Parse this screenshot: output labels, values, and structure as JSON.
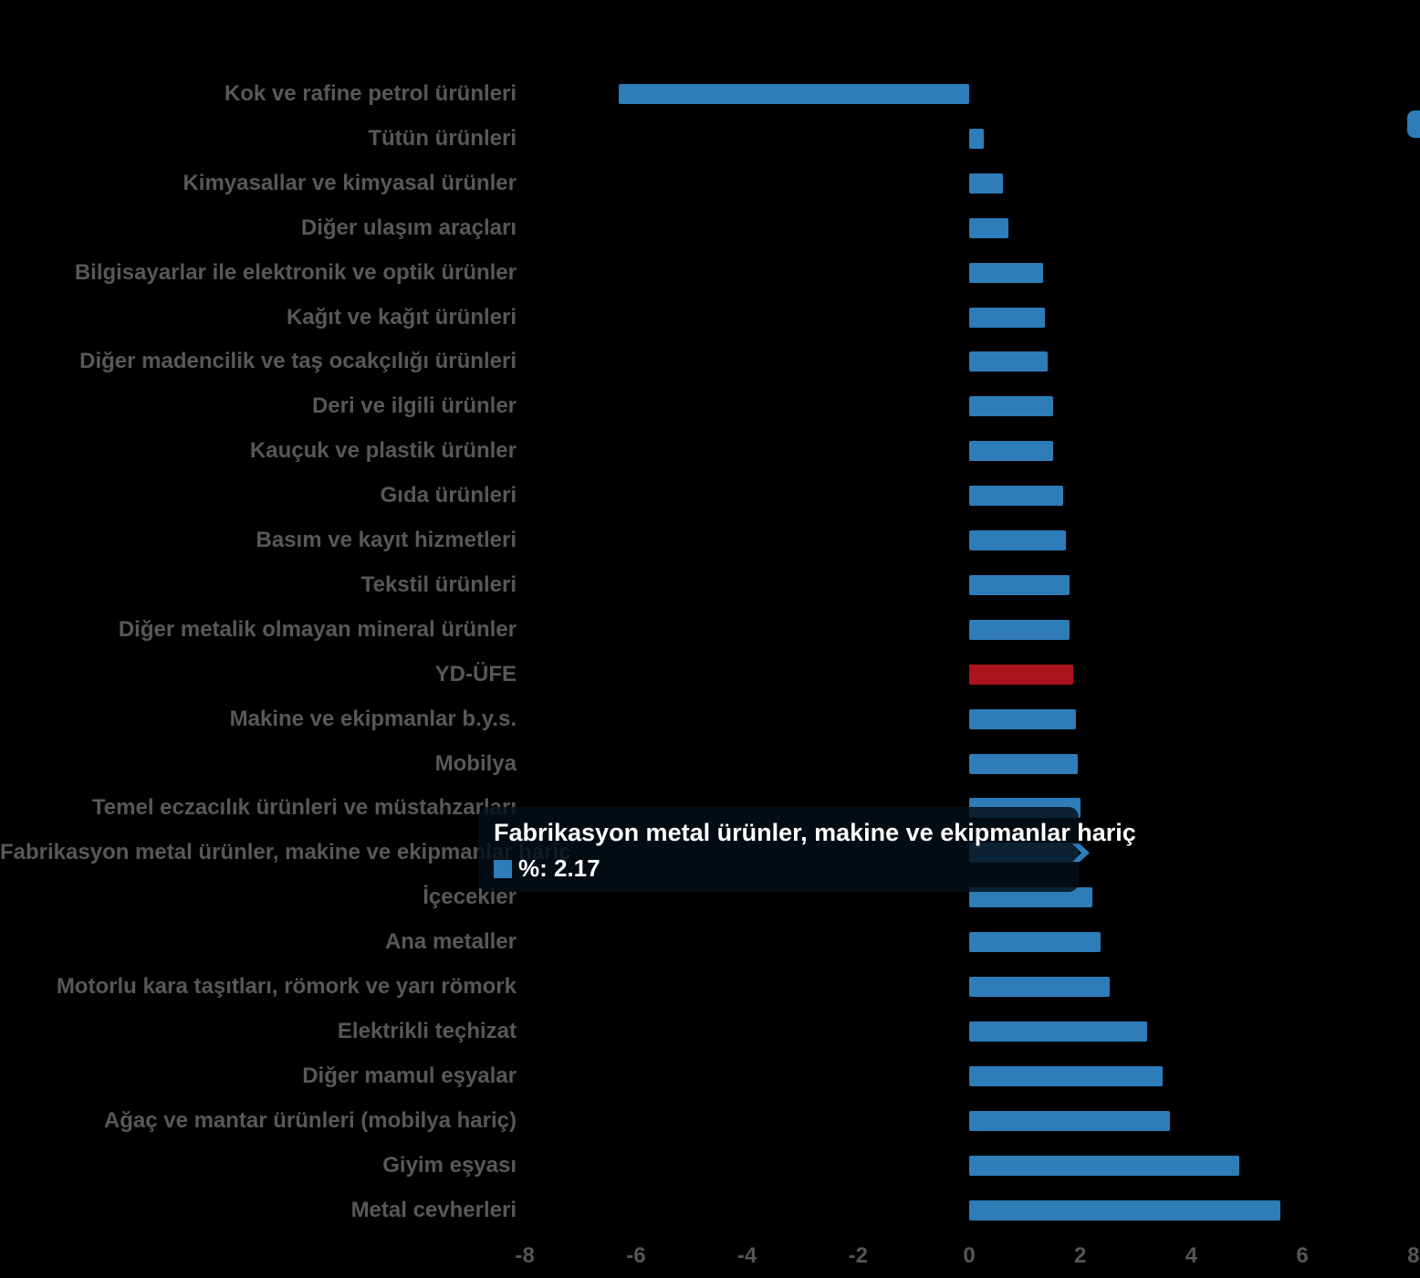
{
  "chart_data": {
    "type": "bar",
    "orientation": "horizontal",
    "title": "",
    "xlabel": "",
    "ylabel": "",
    "xlim": [
      -8,
      8
    ],
    "x_ticks": [
      "-8",
      "-6",
      "-4",
      "-2",
      "0",
      "2",
      "4",
      "6",
      "8"
    ],
    "grid": false,
    "legend": "none",
    "bar_color": "#2e7cb8",
    "highlight_bar_color": "#ab141e",
    "highlighted_category": "YD-ÜFE",
    "hovered_category": "Fabrikasyon metal ürünler, makine ve ekipmanlar hariç",
    "categories": [
      "Kok ve rafine petrol ürünleri",
      "Tütün ürünleri",
      "Kimyasallar ve kimyasal ürünler",
      "Diğer ulaşım araçları",
      "Bilgisayarlar ile elektronik ve optik ürünler",
      "Kağıt ve kağıt ürünleri",
      "Diğer madencilik ve taş ocakçılığı ürünleri",
      "Deri ve ilgili ürünler",
      "Kauçuk ve plastik ürünler",
      "Gıda ürünleri",
      "Basım ve kayıt hizmetleri",
      "Tekstil ürünleri",
      "Diğer metalik olmayan mineral ürünler",
      "YD-ÜFE",
      "Makine ve ekipmanlar b.y.s.",
      "Mobilya",
      "Temel eczacılık ürünleri ve müstahzarları",
      "Fabrikasyon metal ürünler, makine ve ekipmanlar hariç",
      "İçecekler",
      "Ana metaller",
      "Motorlu kara taşıtları, römork ve yarı römork",
      "Elektrikli teçhizat",
      "Diğer mamul eşyalar",
      "Ağaç ve mantar ürünleri (mobilya hariç)",
      "Giyim eşyası",
      "Metal cevherleri"
    ],
    "values": [
      -6.31,
      0.26,
      0.61,
      0.71,
      1.33,
      1.36,
      1.41,
      1.51,
      1.52,
      1.69,
      1.75,
      1.8,
      1.8,
      1.88,
      1.93,
      1.96,
      2.01,
      2.17,
      2.22,
      2.36,
      2.53,
      3.2,
      3.48,
      3.62,
      4.86,
      5.61
    ]
  },
  "tooltip": {
    "title": "Fabrikasyon metal ürünler, makine ve ekipmanlar hariç",
    "value_label": "%: 2.17",
    "marker_color": "#2e7cb8"
  },
  "colors": {
    "background": "#000000",
    "category_label": "#58585a",
    "tick_label": "#565658",
    "tooltip_background": "rgba(4,13,23,0.82)",
    "tooltip_text": "#ffffff"
  }
}
